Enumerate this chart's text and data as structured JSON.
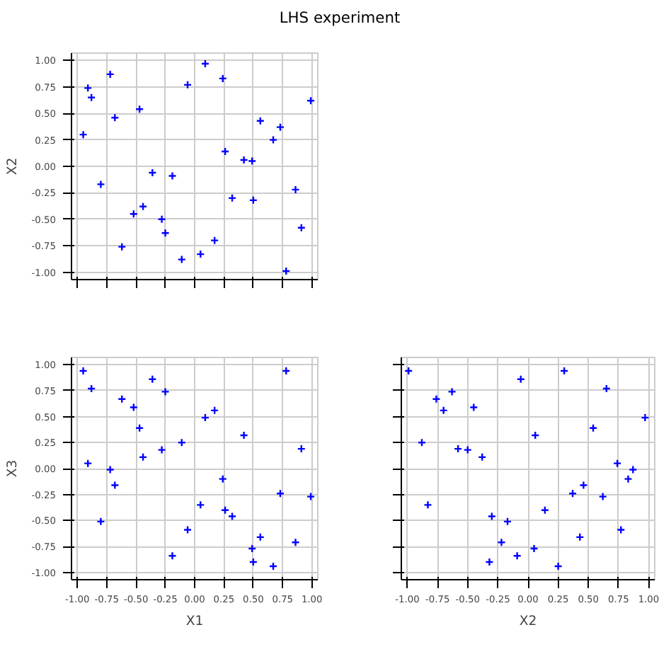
{
  "chart_data": [
    {
      "type": "scatter",
      "title": "LHS experiment",
      "ylabel": "X2",
      "xlim": [
        -1.05,
        1.05
      ],
      "ylim": [
        -1.07,
        1.07
      ],
      "xticks": [
        {
          "value": -1.0,
          "label": null
        },
        {
          "value": -0.75,
          "label": null
        },
        {
          "value": -0.5,
          "label": null
        },
        {
          "value": -0.25,
          "label": null
        },
        {
          "value": 0.0,
          "label": null
        },
        {
          "value": 0.25,
          "label": null
        },
        {
          "value": 0.5,
          "label": null
        },
        {
          "value": 0.75,
          "label": null
        },
        {
          "value": 1.0,
          "label": null
        }
      ],
      "yticks": [
        {
          "value": -1.0,
          "label": "-1.00"
        },
        {
          "value": -0.75,
          "label": "-0.75"
        },
        {
          "value": -0.5,
          "label": "-0.50"
        },
        {
          "value": -0.25,
          "label": "-0.25"
        },
        {
          "value": 0.0,
          "label": "0.00"
        },
        {
          "value": 0.25,
          "label": "0.25"
        },
        {
          "value": 0.5,
          "label": "0.50"
        },
        {
          "value": 0.75,
          "label": "0.75"
        },
        {
          "value": 1.0,
          "label": "1.00"
        }
      ],
      "tick_labels": "y",
      "grid": true,
      "marker": "cross",
      "series": [
        {
          "color": "#0000ff",
          "x": [
            -0.95,
            -0.91,
            -0.88,
            -0.8,
            -0.72,
            -0.68,
            -0.62,
            -0.52,
            -0.47,
            -0.44,
            -0.36,
            -0.28,
            -0.25,
            -0.19,
            -0.11,
            -0.06,
            0.05,
            0.09,
            0.17,
            0.24,
            0.26,
            0.32,
            0.42,
            0.49,
            0.5,
            0.56,
            0.67,
            0.73,
            0.78,
            0.86,
            0.91,
            0.99
          ],
          "values": [
            0.3,
            0.74,
            0.65,
            -0.17,
            0.87,
            0.46,
            -0.76,
            -0.45,
            0.54,
            -0.38,
            -0.06,
            -0.5,
            -0.63,
            -0.09,
            -0.88,
            0.77,
            -0.83,
            0.97,
            -0.7,
            0.83,
            0.14,
            -0.3,
            0.06,
            0.05,
            -0.32,
            0.43,
            0.25,
            0.37,
            -0.99,
            -0.22,
            -0.58,
            0.62
          ]
        }
      ]
    },
    {
      "type": "scatter",
      "xlabel": "X1",
      "ylabel": "X3",
      "xlim": [
        -1.05,
        1.05
      ],
      "ylim": [
        -1.07,
        1.07
      ],
      "xticks": [
        {
          "value": -1.0,
          "label": "-1.00"
        },
        {
          "value": -0.75,
          "label": "-0.75"
        },
        {
          "value": -0.5,
          "label": "-0.50"
        },
        {
          "value": -0.25,
          "label": "-0.25"
        },
        {
          "value": 0.0,
          "label": "0.00"
        },
        {
          "value": 0.25,
          "label": "0.25"
        },
        {
          "value": 0.5,
          "label": "0.50"
        },
        {
          "value": 0.75,
          "label": "0.75"
        },
        {
          "value": 1.0,
          "label": "1.00"
        }
      ],
      "yticks": [
        {
          "value": -1.0,
          "label": "-1.00"
        },
        {
          "value": -0.75,
          "label": "-0.75"
        },
        {
          "value": -0.5,
          "label": "-0.50"
        },
        {
          "value": -0.25,
          "label": "-0.25"
        },
        {
          "value": 0.0,
          "label": "0.00"
        },
        {
          "value": 0.25,
          "label": "0.25"
        },
        {
          "value": 0.5,
          "label": "0.50"
        },
        {
          "value": 0.75,
          "label": "0.75"
        },
        {
          "value": 1.0,
          "label": "1.00"
        }
      ],
      "grid": true,
      "marker": "cross",
      "series": [
        {
          "color": "#0000ff",
          "x": [
            -0.95,
            -0.91,
            -0.88,
            -0.8,
            -0.72,
            -0.68,
            -0.62,
            -0.52,
            -0.47,
            -0.44,
            -0.36,
            -0.28,
            -0.25,
            -0.19,
            -0.11,
            -0.06,
            0.05,
            0.09,
            0.17,
            0.24,
            0.26,
            0.32,
            0.42,
            0.49,
            0.5,
            0.56,
            0.67,
            0.73,
            0.78,
            0.86,
            0.91,
            0.99
          ],
          "values": [
            0.94,
            0.05,
            0.77,
            -0.51,
            -0.01,
            -0.16,
            0.67,
            0.59,
            0.39,
            0.11,
            0.86,
            0.18,
            0.74,
            -0.84,
            0.25,
            -0.59,
            -0.35,
            0.49,
            0.56,
            -0.1,
            -0.4,
            -0.46,
            0.32,
            -0.77,
            -0.9,
            -0.66,
            -0.94,
            -0.24,
            0.94,
            -0.71,
            0.19,
            -0.27
          ]
        }
      ]
    },
    {
      "type": "scatter",
      "xlabel": "X2",
      "xlim": [
        -1.05,
        1.05
      ],
      "ylim": [
        -1.07,
        1.07
      ],
      "xticks": [
        {
          "value": -1.0,
          "label": "-1.00"
        },
        {
          "value": -0.75,
          "label": "-0.75"
        },
        {
          "value": -0.5,
          "label": "-0.50"
        },
        {
          "value": -0.25,
          "label": "-0.25"
        },
        {
          "value": 0.0,
          "label": "0.00"
        },
        {
          "value": 0.25,
          "label": "0.25"
        },
        {
          "value": 0.5,
          "label": "0.50"
        },
        {
          "value": 0.75,
          "label": "0.75"
        },
        {
          "value": 1.0,
          "label": "1.00"
        }
      ],
      "yticks": [
        {
          "value": -1.0,
          "label": null
        },
        {
          "value": -0.75,
          "label": null
        },
        {
          "value": -0.5,
          "label": null
        },
        {
          "value": -0.25,
          "label": null
        },
        {
          "value": 0.0,
          "label": null
        },
        {
          "value": 0.25,
          "label": null
        },
        {
          "value": 0.5,
          "label": null
        },
        {
          "value": 0.75,
          "label": null
        },
        {
          "value": 1.0,
          "label": null
        }
      ],
      "tick_labels": "x",
      "grid": true,
      "marker": "cross",
      "series": [
        {
          "color": "#0000ff",
          "x": [
            0.3,
            0.74,
            0.65,
            -0.17,
            0.87,
            0.46,
            -0.76,
            -0.45,
            0.54,
            -0.38,
            -0.06,
            -0.5,
            -0.63,
            -0.09,
            -0.88,
            0.77,
            -0.83,
            0.97,
            -0.7,
            0.83,
            0.14,
            -0.3,
            0.06,
            0.05,
            -0.32,
            0.43,
            0.25,
            0.37,
            -0.99,
            -0.22,
            -0.58,
            0.62
          ],
          "values": [
            0.94,
            0.05,
            0.77,
            -0.51,
            -0.01,
            -0.16,
            0.67,
            0.59,
            0.39,
            0.11,
            0.86,
            0.18,
            0.74,
            -0.84,
            0.25,
            -0.59,
            -0.35,
            0.49,
            0.56,
            -0.1,
            -0.4,
            -0.46,
            0.32,
            -0.77,
            -0.9,
            -0.66,
            -0.94,
            -0.24,
            0.94,
            -0.71,
            0.19,
            -0.27
          ]
        }
      ]
    }
  ]
}
